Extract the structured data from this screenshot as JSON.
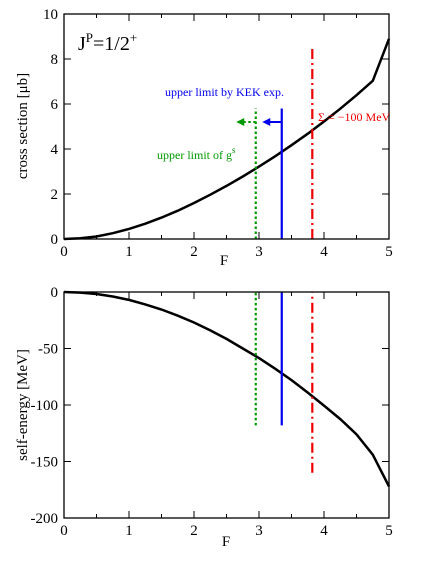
{
  "chart_data": [
    {
      "type": "line",
      "panel": "top",
      "title": "",
      "corner_label": "Jᴾ=1/2⁺",
      "xlabel": "F",
      "ylabel": "cross section [μb]",
      "xlim": [
        0,
        5
      ],
      "ylim": [
        0,
        10
      ],
      "x_ticks": [
        "0",
        "1",
        "2",
        "3",
        "4",
        "5"
      ],
      "y_ticks": [
        "0",
        "2",
        "4",
        "6",
        "8",
        "10"
      ],
      "series": [
        {
          "x": [
            0,
            0.25,
            0.5,
            0.75,
            1,
            1.25,
            1.5,
            1.75,
            2,
            2.25,
            2.5,
            2.75,
            3,
            3.25,
            3.5,
            3.75,
            4,
            4.25,
            4.5,
            4.75,
            5
          ],
          "y": [
            0,
            0.03,
            0.11,
            0.26,
            0.45,
            0.68,
            0.95,
            1.26,
            1.6,
            1.97,
            2.36,
            2.78,
            3.22,
            3.68,
            4.17,
            4.68,
            5.22,
            5.79,
            6.39,
            7.03,
            8.9
          ],
          "color": "#000000"
        }
      ],
      "annotations": [
        {
          "text": "upper limit by KEK exp.",
          "color": "#0000ee",
          "x_line": 3.35,
          "y_range": [
            0,
            5.8
          ],
          "arrow_from_x": 3.35,
          "arrow_to_x": 3.05,
          "arrow_y": 5.2
        },
        {
          "text": "upper limit of gˢ",
          "color": "#009900",
          "x_line": 2.95,
          "y_range": [
            0,
            5.8
          ],
          "arrow_from_x": 2.95,
          "arrow_to_x": 2.65,
          "arrow_y": 5.2
        },
        {
          "text": "Σ = −100 MeV",
          "color": "#ee0000",
          "x_line": 3.82,
          "y_range": [
            0,
            8.5
          ]
        }
      ]
    },
    {
      "type": "line",
      "panel": "bottom",
      "title": "",
      "xlabel": "F",
      "ylabel": "self-energy [MeV]",
      "xlim": [
        0,
        5
      ],
      "ylim": [
        -200,
        0
      ],
      "x_ticks": [
        "0",
        "1",
        "2",
        "3",
        "4",
        "5"
      ],
      "y_ticks": [
        "0",
        "-50",
        "-100",
        "-150",
        "-200"
      ],
      "series": [
        {
          "x": [
            0,
            0.25,
            0.5,
            0.75,
            1,
            1.25,
            1.5,
            1.75,
            2,
            2.25,
            2.5,
            2.75,
            3,
            3.25,
            3.5,
            3.75,
            4,
            4.25,
            4.5,
            4.75,
            5
          ],
          "y": [
            0,
            -0.5,
            -1.8,
            -4,
            -7,
            -11,
            -15.5,
            -21,
            -27,
            -34,
            -41.5,
            -50,
            -58.5,
            -68,
            -78,
            -89,
            -100.5,
            -112.5,
            -126,
            -144,
            -172
          ],
          "color": "#000000"
        }
      ],
      "annotations": [
        {
          "color": "#009900",
          "x_line": 2.95,
          "y_range": [
            -118,
            0
          ]
        },
        {
          "color": "#0000ee",
          "x_line": 3.35,
          "y_range": [
            -118,
            0
          ]
        },
        {
          "color": "#ee0000",
          "x_line": 3.82,
          "y_range": [
            -160,
            0
          ]
        }
      ]
    }
  ]
}
